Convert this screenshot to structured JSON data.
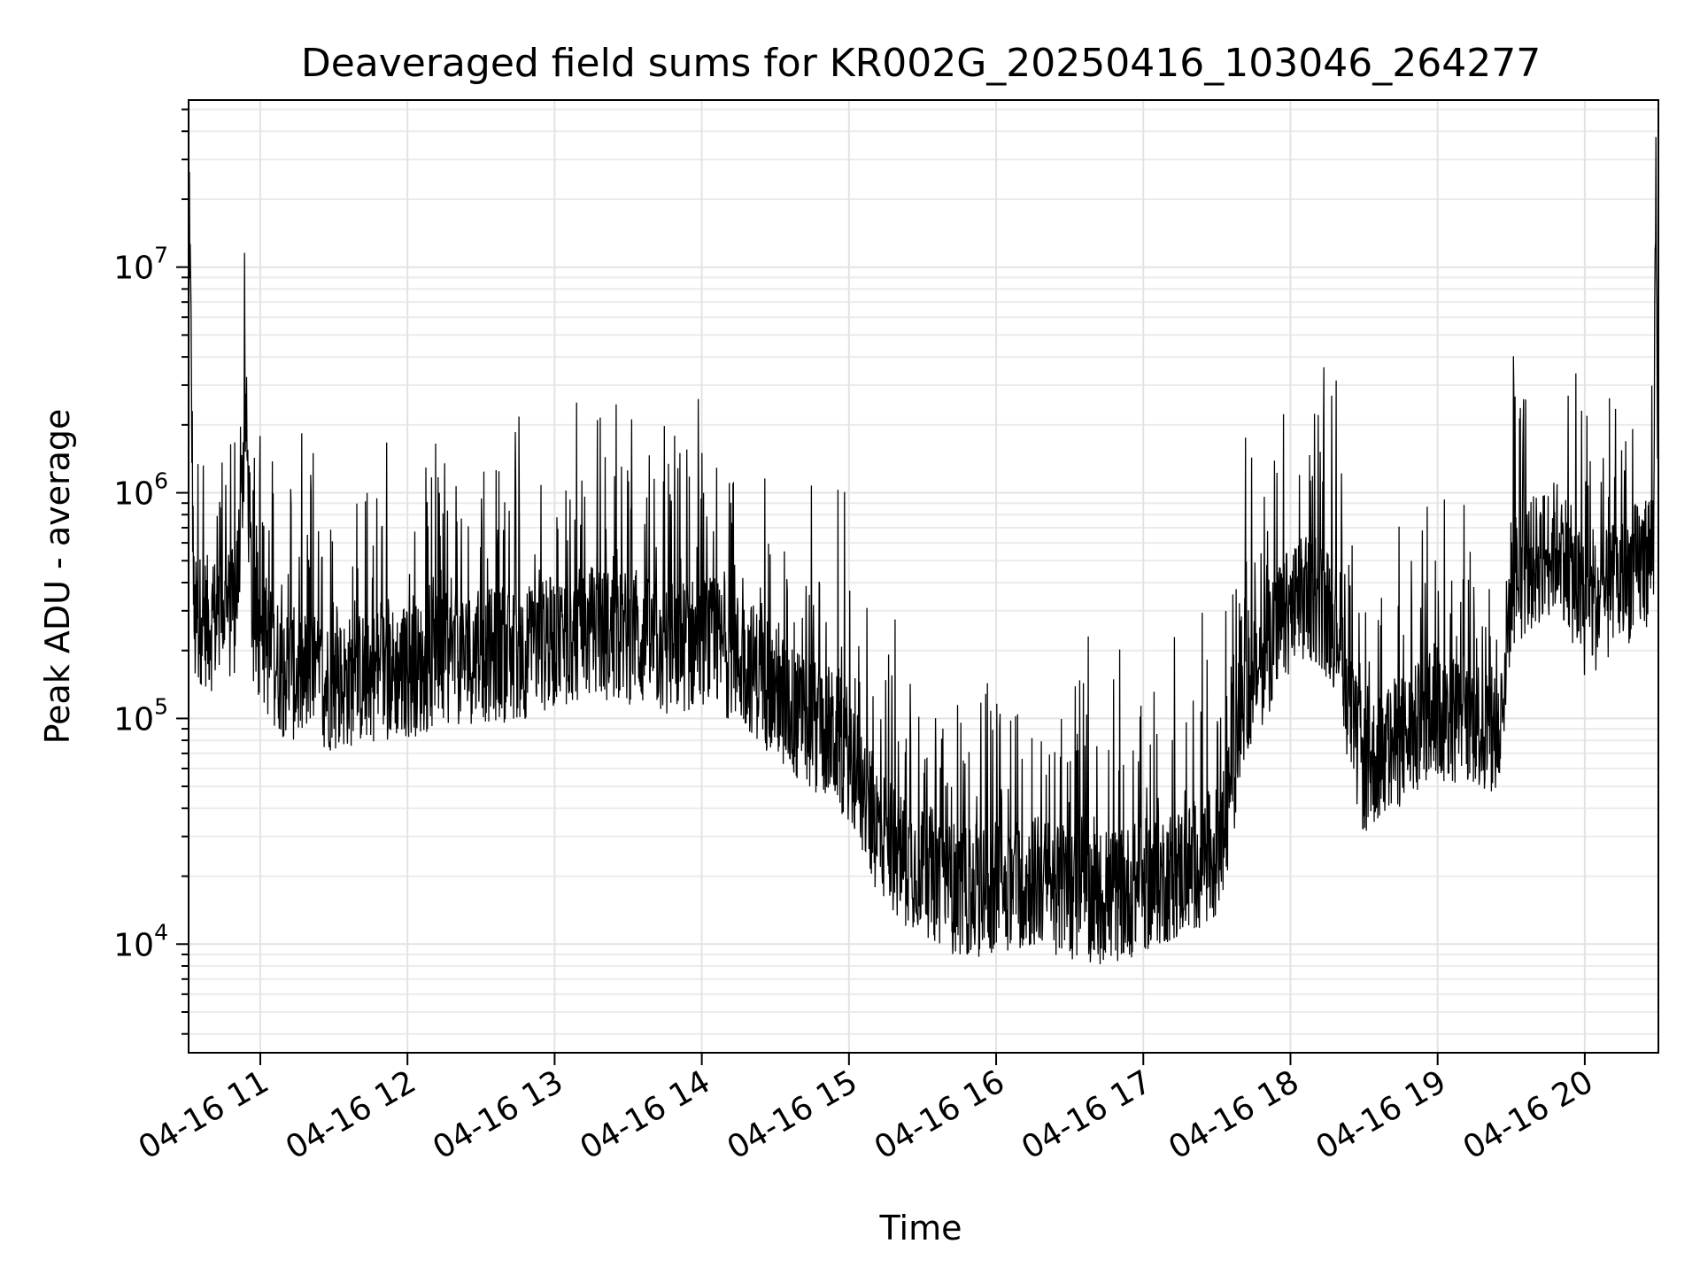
{
  "chart_data": {
    "type": "line",
    "title": "Deaveraged field sums for KR002G_20250416_103046_264277",
    "xlabel": "Time",
    "ylabel": "Peak ADU - average",
    "yscale": "log",
    "xlim": [
      "2025-04-16T10:30:46",
      "2025-04-16T20:30:00"
    ],
    "ylim": [
      3300,
      55000000
    ],
    "grid": true,
    "x_ticks": [
      "2025-04-16T11:00",
      "2025-04-16T12:00",
      "2025-04-16T13:00",
      "2025-04-16T14:00",
      "2025-04-16T15:00",
      "2025-04-16T16:00",
      "2025-04-16T17:00",
      "2025-04-16T18:00",
      "2025-04-16T19:00",
      "2025-04-16T20:00"
    ],
    "x_tick_labels": [
      "04-16 11",
      "04-16 12",
      "04-16 13",
      "04-16 14",
      "04-16 15",
      "04-16 16",
      "04-16 17",
      "04-16 18",
      "04-16 19",
      "04-16 20"
    ],
    "y_ticks": [
      10000,
      100000,
      1000000,
      10000000
    ],
    "y_tick_labels": [
      {
        "base": "10",
        "exp": "4"
      },
      {
        "base": "10",
        "exp": "5"
      },
      {
        "base": "10",
        "exp": "6"
      },
      {
        "base": "10",
        "exp": "7"
      }
    ],
    "series": [
      {
        "color": "#000000",
        "x": [
          "2025-04-16T10:30:46",
          "2025-04-16T10:31:00",
          "2025-04-16T10:33:00",
          "2025-04-16T10:36:00",
          "2025-04-16T10:40:00",
          "2025-04-16T10:45:00",
          "2025-04-16T10:50:00",
          "2025-04-16T10:54:00",
          "2025-04-16T10:57:00",
          "2025-04-16T11:00:00",
          "2025-04-16T11:10:00",
          "2025-04-16T11:20:00",
          "2025-04-16T11:30:00",
          "2025-04-16T11:40:00",
          "2025-04-16T11:50:00",
          "2025-04-16T12:00:00",
          "2025-04-16T12:15:00",
          "2025-04-16T12:30:00",
          "2025-04-16T12:45:00",
          "2025-04-16T13:00:00",
          "2025-04-16T13:15:00",
          "2025-04-16T13:30:00",
          "2025-04-16T13:45:00",
          "2025-04-16T14:00:00",
          "2025-04-16T14:10:00",
          "2025-04-16T14:20:00",
          "2025-04-16T14:30:00",
          "2025-04-16T14:40:00",
          "2025-04-16T14:50:00",
          "2025-04-16T15:00:00",
          "2025-04-16T15:10:00",
          "2025-04-16T15:20:00",
          "2025-04-16T15:30:00",
          "2025-04-16T15:40:00",
          "2025-04-16T15:50:00",
          "2025-04-16T16:00:00",
          "2025-04-16T16:15:00",
          "2025-04-16T16:30:00",
          "2025-04-16T16:45:00",
          "2025-04-16T17:00:00",
          "2025-04-16T17:10:00",
          "2025-04-16T17:20:00",
          "2025-04-16T17:30:00",
          "2025-04-16T17:35:00",
          "2025-04-16T17:40:00",
          "2025-04-16T17:50:00",
          "2025-04-16T18:00:00",
          "2025-04-16T18:10:00",
          "2025-04-16T18:20:00",
          "2025-04-16T18:25:00",
          "2025-04-16T18:30:00",
          "2025-04-16T18:45:00",
          "2025-04-16T19:00:00",
          "2025-04-16T19:15:00",
          "2025-04-16T19:25:00",
          "2025-04-16T19:30:00",
          "2025-04-16T19:40:00",
          "2025-04-16T19:50:00",
          "2025-04-16T20:00:00",
          "2025-04-16T20:10:00",
          "2025-04-16T20:20:00",
          "2025-04-16T20:25:00",
          "2025-04-16T20:28:00",
          "2025-04-16T20:29:00",
          "2025-04-16T20:30:00"
        ],
        "y": [
          300000,
          26000000,
          250000,
          280000,
          260000,
          300000,
          280000,
          2300000,
          250000,
          220000,
          160000,
          150000,
          140000,
          150000,
          160000,
          160000,
          180000,
          190000,
          190000,
          220000,
          240000,
          230000,
          200000,
          220000,
          200000,
          170000,
          130000,
          100000,
          90000,
          70000,
          35000,
          25000,
          22000,
          18000,
          17000,
          18000,
          19000,
          17000,
          16000,
          18000,
          20000,
          22000,
          25000,
          40000,
          120000,
          200000,
          300000,
          350000,
          250000,
          90000,
          60000,
          80000,
          100000,
          100000,
          80000,
          400000,
          500000,
          600000,
          300000,
          350000,
          450000,
          500000,
          600000,
          34000000,
          600000
        ],
        "noise_amplitude_decades": 0.3,
        "spike_count": 520,
        "spike_magnitude_decades": 0.65
      }
    ]
  }
}
